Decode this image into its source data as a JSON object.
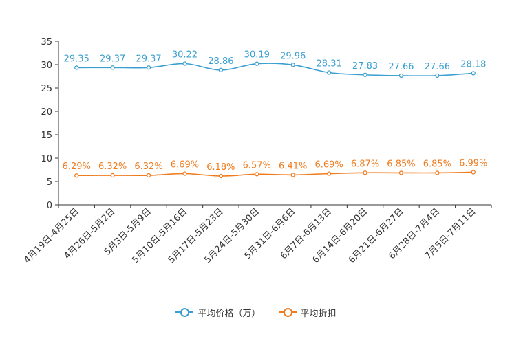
{
  "chart_data": {
    "type": "line",
    "categories": [
      "4月19日-4月25日",
      "4月26日-5月2日",
      "5月3日-5月9日",
      "5月10日-5月16日",
      "5月17日-5月23日",
      "5月24日-5月30日",
      "5月31日-6月6日",
      "6月7日-6月13日",
      "6月14日-6月20日",
      "6月21日-6月27日",
      "6月28日-7月4日",
      "7月5日-7月11日"
    ],
    "ylim": [
      0,
      35
    ],
    "yticks": [
      0,
      5,
      10,
      15,
      20,
      25,
      30,
      35
    ],
    "grid": false,
    "legend_position": "bottom-center",
    "series": [
      {
        "name": "平均价格（万）",
        "color": "#3a9fd0",
        "values": [
          29.35,
          29.37,
          29.37,
          30.22,
          28.86,
          30.19,
          29.96,
          28.31,
          27.83,
          27.66,
          27.66,
          28.18
        ],
        "labels": [
          "29.35",
          "29.37",
          "29.37",
          "30.22",
          "28.86",
          "30.19",
          "29.96",
          "28.31",
          "27.83",
          "27.66",
          "27.66",
          "28.18"
        ]
      },
      {
        "name": "平均折扣",
        "color": "#f07c20",
        "values": [
          6.29,
          6.32,
          6.32,
          6.69,
          6.18,
          6.57,
          6.41,
          6.69,
          6.87,
          6.85,
          6.85,
          6.99
        ],
        "labels": [
          "6.29%",
          "6.32%",
          "6.32%",
          "6.69%",
          "6.18%",
          "6.57%",
          "6.41%",
          "6.69%",
          "6.87%",
          "6.85%",
          "6.85%",
          "6.99%"
        ]
      }
    ]
  }
}
